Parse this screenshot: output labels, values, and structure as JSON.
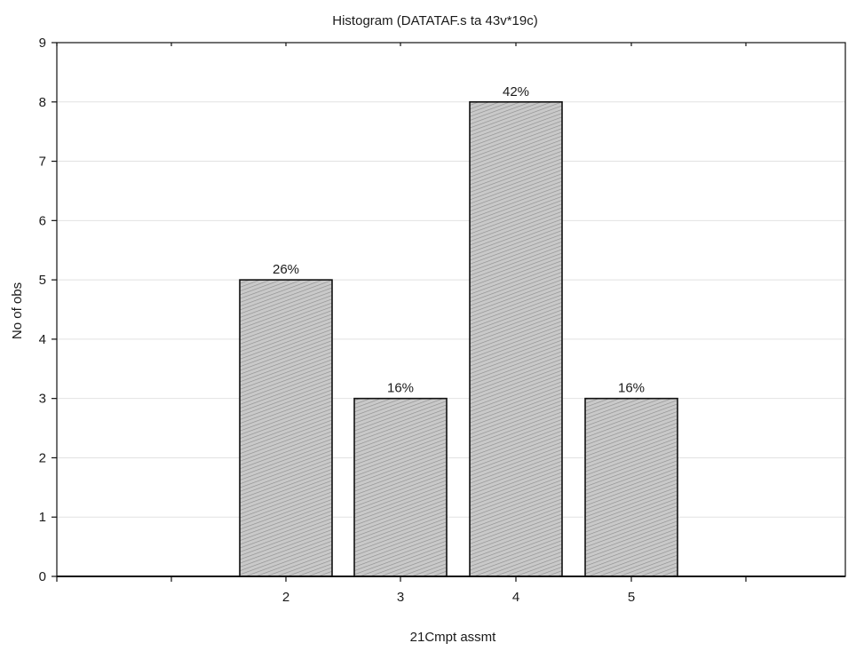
{
  "chart_data": {
    "type": "bar",
    "title": "Histogram (DATATAF.s ta 43v*19c)",
    "xlabel": "21Cmpt assmt",
    "ylabel": "No of obs",
    "categories": [
      "2",
      "3",
      "4",
      "5"
    ],
    "values": [
      5,
      3,
      8,
      3
    ],
    "labels": [
      "26%",
      "16%",
      "42%",
      "16%"
    ],
    "ylim": [
      0,
      9
    ],
    "yticks": [
      "0",
      "1",
      "2",
      "3",
      "4",
      "5",
      "6",
      "7",
      "8",
      "9"
    ],
    "grid": true,
    "legend": "none",
    "colors": {
      "bar_fill": "#c9c9c9",
      "bar_hatch": "#8f8f8f",
      "bar_stroke": "#111111",
      "axis": "#111111",
      "grid": "#e2e2e2"
    }
  }
}
